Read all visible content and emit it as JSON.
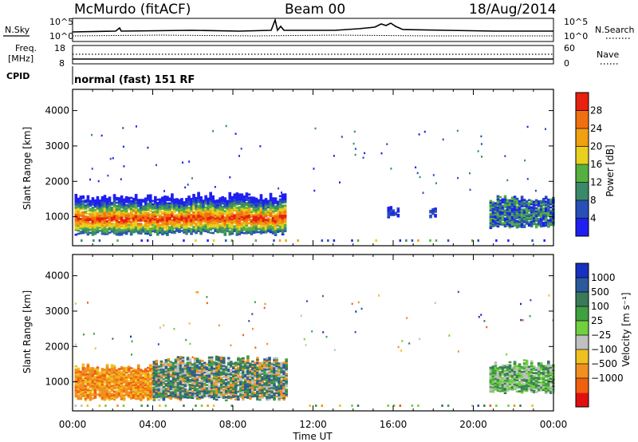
{
  "header": {
    "station": "McMurdo (fitACF)",
    "beam": "Beam 00",
    "date": "18/Aug/2014",
    "mode": "normal (fast) 151 RF"
  },
  "strip_labels": {
    "nsky": "N.Sky",
    "nsearch": "N.Search",
    "freq": "Freq.",
    "mhz": "[MHz]",
    "cpid": "CPID",
    "nave": "Nave",
    "log_top": "10^5",
    "log_bottom": "10^0",
    "freq_top": "18",
    "freq_bottom": "8",
    "nave_top": "60",
    "nave_bottom": "0"
  },
  "axes": {
    "ylabel": "Slant Range [km]",
    "xlabel": "Time UT",
    "yticks": [
      "1000",
      "2000",
      "3000",
      "4000"
    ],
    "xticks": [
      "00:00",
      "04:00",
      "08:00",
      "12:00",
      "16:00",
      "20:00",
      "00:00"
    ]
  },
  "chart_data": [
    {
      "type": "heatmap",
      "title": "",
      "xlabel": "",
      "ylabel": "Slant Range [km]",
      "xlim": [
        0,
        24
      ],
      "ylim": [
        180,
        4600
      ],
      "colorbar": {
        "label": "Power [dB]",
        "ticks": [
          "4",
          "8",
          "12",
          "16",
          "20",
          "24",
          "28"
        ],
        "colors": [
          "#1f1ff0",
          "#2850b8",
          "#3a8a6a",
          "#55b040",
          "#e8d020",
          "#f0a010",
          "#f07010",
          "#e82010"
        ]
      },
      "regions": [
        {
          "t_start": 0.1,
          "t_end": 10.6,
          "range_low": 500,
          "range_high": 1550,
          "level": "high"
        },
        {
          "t_start": 15.7,
          "t_end": 16.2,
          "range_low": 1000,
          "range_high": 1200,
          "level": "low"
        },
        {
          "t_start": 17.8,
          "t_end": 18.1,
          "range_low": 1000,
          "range_high": 1150,
          "level": "low"
        },
        {
          "t_start": 20.8,
          "t_end": 24.0,
          "range_low": 700,
          "range_high": 1500,
          "level": "mixed"
        }
      ]
    },
    {
      "type": "heatmap",
      "title": "",
      "xlabel": "Time UT",
      "ylabel": "Slant Range [km]",
      "xlim": [
        0,
        24
      ],
      "ylim": [
        180,
        4600
      ],
      "colorbar": {
        "label": "Velocity [m s⁻¹]",
        "ticks": [
          "1000",
          "500",
          "100",
          "25",
          "−25",
          "−100",
          "−500",
          "−1000"
        ],
        "colors": [
          "#1830c0",
          "#2a5a9a",
          "#3a7a5a",
          "#40a040",
          "#70d040",
          "#c0c0c0",
          "#f0c020",
          "#f09020",
          "#f06010",
          "#e01010"
        ]
      },
      "regions": [
        {
          "t_start": 0.1,
          "t_end": 4.0,
          "range_low": 500,
          "range_high": 1400,
          "level": "negative"
        },
        {
          "t_start": 4.0,
          "t_end": 10.6,
          "range_low": 500,
          "range_high": 1600,
          "level": "mixed"
        },
        {
          "t_start": 20.8,
          "t_end": 24.0,
          "range_low": 700,
          "range_high": 1500,
          "level": "positive"
        }
      ]
    }
  ]
}
